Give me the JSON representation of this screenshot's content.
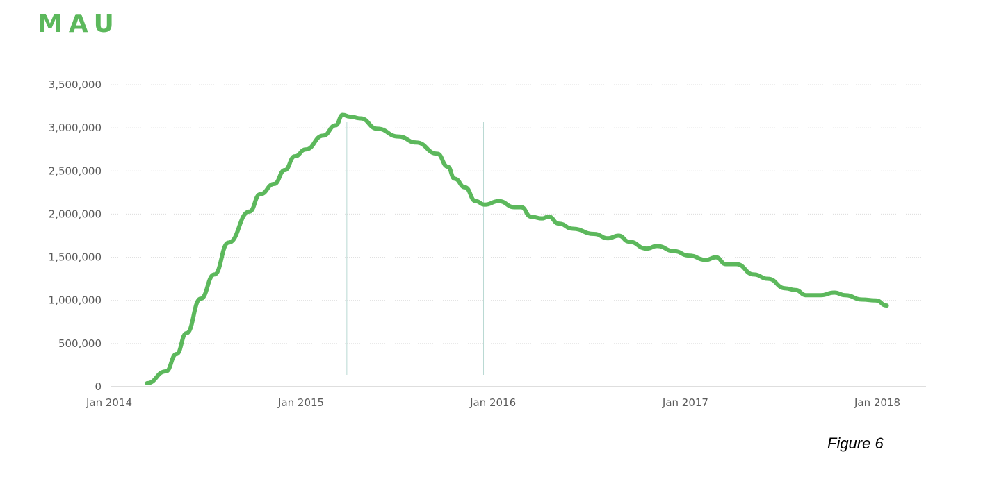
{
  "chart_data": {
    "type": "line",
    "title": "MAU",
    "caption": "Figure 6",
    "xlabel": "",
    "ylabel": "",
    "ylim": [
      0,
      3500000
    ],
    "y_ticks": [
      "0",
      "500,000",
      "1,000,000",
      "1,500,000",
      "2,000,000",
      "2,500,000",
      "3,000,000",
      "3,500,000"
    ],
    "y_tick_values": [
      0,
      500000,
      1000000,
      1500000,
      2000000,
      2500000,
      3000000,
      3500000
    ],
    "x_ticks": [
      "Jan 2014",
      "Jan 2015",
      "Jan 2016",
      "Jan 2017",
      "Jan 2018"
    ],
    "x_tick_values": [
      "2014-01-01",
      "2015-01-01",
      "2016-01-01",
      "2017-01-01",
      "2018-01-01"
    ],
    "xlim": [
      "2014-01-01",
      "2018-04-15"
    ],
    "grid": "horizontal dotted",
    "legend": "none",
    "line_color": "#5cb85c",
    "title_color": "#5cb85c",
    "reference_lines": [
      "2015-03-29",
      "2015-12-14"
    ],
    "reference_line_color": "#b9d9d3",
    "series": [
      {
        "x": [
          "2014-03-14",
          "2014-04-19",
          "2014-05-09",
          "2014-05-28",
          "2014-06-24",
          "2014-07-20",
          "2014-08-16",
          "2014-09-25",
          "2014-10-15",
          "2014-11-11",
          "2014-12-01",
          "2014-12-20",
          "2015-01-10",
          "2015-02-12",
          "2015-03-08",
          "2015-03-21",
          "2015-04-04",
          "2015-04-24",
          "2015-05-26",
          "2015-07-05",
          "2015-08-08",
          "2015-09-17",
          "2015-10-07",
          "2015-10-20",
          "2015-11-09",
          "2015-11-29",
          "2015-12-16",
          "2016-01-12",
          "2016-02-11",
          "2016-02-24",
          "2016-03-13",
          "2016-04-03",
          "2016-04-16",
          "2016-05-05",
          "2016-06-01",
          "2016-07-11",
          "2016-08-07",
          "2016-08-27",
          "2016-09-16",
          "2016-10-19",
          "2016-11-08",
          "2016-12-11",
          "2017-01-07",
          "2017-02-09",
          "2017-02-28",
          "2017-03-19",
          "2017-04-08",
          "2017-05-11",
          "2017-06-07",
          "2017-07-10",
          "2017-07-29",
          "2017-08-19",
          "2017-09-15",
          "2017-10-11",
          "2017-11-01",
          "2017-12-03",
          "2017-12-29",
          "2018-01-19"
        ],
        "values": [
          40000,
          177000,
          378000,
          620000,
          1020000,
          1300000,
          1670000,
          2030000,
          2230000,
          2350000,
          2510000,
          2670000,
          2750000,
          2910000,
          3030000,
          3150000,
          3130000,
          3110000,
          2990000,
          2900000,
          2830000,
          2700000,
          2550000,
          2410000,
          2310000,
          2150000,
          2110000,
          2150000,
          2080000,
          2080000,
          1970000,
          1950000,
          1970000,
          1890000,
          1830000,
          1770000,
          1720000,
          1750000,
          1680000,
          1600000,
          1630000,
          1570000,
          1520000,
          1470000,
          1500000,
          1420000,
          1420000,
          1300000,
          1250000,
          1140000,
          1120000,
          1060000,
          1060000,
          1090000,
          1060000,
          1010000,
          1000000,
          940000
        ]
      }
    ]
  }
}
